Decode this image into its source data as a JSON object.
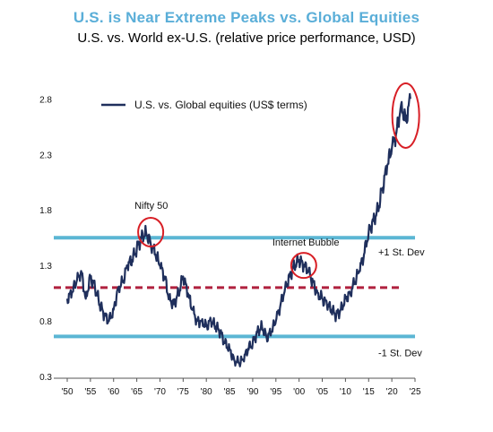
{
  "title": "U.S. is Near Extreme Peaks vs. Global Equities",
  "subtitle": "U.S. vs. World ex-U.S. (relative price performance, USD)",
  "colors": {
    "title": "#5aaed8",
    "series": "#1f2f5c",
    "sd_band": "#5bb6d4",
    "mean": "#b0213e",
    "highlight_circle": "#d81f26"
  },
  "chart_data": {
    "type": "line",
    "title": "U.S. is Near Extreme Peaks vs. Global Equities",
    "subtitle": "U.S. vs. World ex-U.S. (relative price performance, USD)",
    "xlabel": "",
    "ylabel": "",
    "xlim": [
      1950,
      2025
    ],
    "ylim": [
      0.3,
      2.9
    ],
    "x_ticks": [
      "'50",
      "'55",
      "'60",
      "'65",
      "'70",
      "'75",
      "'80",
      "'85",
      "'90",
      "'95",
      "'00",
      "'05",
      "'10",
      "'15",
      "'20",
      "'25"
    ],
    "y_ticks": [
      "0.3",
      "0.8",
      "1.3",
      "1.8",
      "2.3",
      "2.8"
    ],
    "legend": {
      "position": "top-left",
      "entries": [
        "U.S. vs. Global equities (US$ terms)"
      ]
    },
    "grid": false,
    "series": [
      {
        "name": "U.S. vs. Global equities (US$ terms)",
        "x": [
          1950,
          1951,
          1952,
          1953,
          1954,
          1955,
          1956,
          1957,
          1958,
          1959,
          1960,
          1961,
          1962,
          1963,
          1964,
          1965,
          1966,
          1967,
          1968,
          1969,
          1970,
          1971,
          1972,
          1973,
          1974,
          1975,
          1976,
          1977,
          1978,
          1979,
          1980,
          1981,
          1982,
          1983,
          1984,
          1985,
          1986,
          1987,
          1988,
          1989,
          1990,
          1991,
          1992,
          1993,
          1994,
          1995,
          1996,
          1997,
          1998,
          1999,
          2000,
          2001,
          2002,
          2003,
          2004,
          2005,
          2006,
          2007,
          2008,
          2009,
          2010,
          2011,
          2012,
          2013,
          2014,
          2015,
          2016,
          2017,
          2018,
          2019,
          2020,
          2021,
          2022,
          2023,
          2024
        ],
        "values": [
          1.0,
          1.05,
          1.15,
          1.25,
          1.0,
          1.2,
          1.1,
          0.95,
          0.85,
          0.8,
          0.9,
          1.1,
          1.15,
          1.3,
          1.35,
          1.45,
          1.55,
          1.6,
          1.5,
          1.4,
          1.3,
          1.2,
          1.0,
          0.95,
          1.05,
          1.2,
          1.05,
          0.9,
          0.8,
          0.8,
          0.75,
          0.8,
          0.75,
          0.7,
          0.6,
          0.55,
          0.45,
          0.42,
          0.45,
          0.55,
          0.6,
          0.7,
          0.75,
          0.65,
          0.7,
          0.8,
          0.95,
          1.1,
          1.2,
          1.3,
          1.35,
          1.3,
          1.25,
          1.15,
          1.05,
          1.0,
          0.95,
          0.9,
          0.85,
          0.9,
          1.0,
          1.05,
          1.15,
          1.25,
          1.4,
          1.6,
          1.7,
          1.8,
          2.0,
          2.2,
          2.35,
          2.5,
          2.75,
          2.6,
          2.8
        ]
      }
    ],
    "reference_lines": [
      {
        "label": "+1 St. Dev",
        "y": 1.55
      },
      {
        "label": "",
        "y": 1.1
      },
      {
        "label": "-1 St. Dev",
        "y": 0.66
      }
    ],
    "annotations": [
      {
        "text": "Nifty 50",
        "x": 1968,
        "y": 1.6
      },
      {
        "text": "Internet Bubble",
        "x": 2001,
        "y": 1.3
      }
    ]
  }
}
